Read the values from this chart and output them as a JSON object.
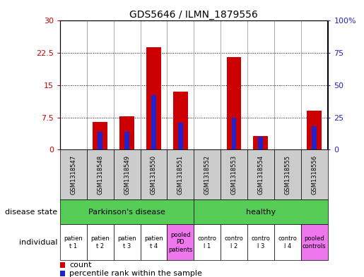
{
  "title": "GDS5646 / ILMN_1879556",
  "samples": [
    "GSM1318547",
    "GSM1318548",
    "GSM1318549",
    "GSM1318550",
    "GSM1318551",
    "GSM1318552",
    "GSM1318553",
    "GSM1318554",
    "GSM1318555",
    "GSM1318556"
  ],
  "count_values": [
    0,
    6.5,
    7.8,
    23.8,
    13.5,
    0,
    21.5,
    3.2,
    0,
    9.0
  ],
  "percentile_values": [
    0,
    14,
    14,
    42,
    21,
    0,
    25,
    10,
    0,
    18
  ],
  "ylim_left": [
    0,
    30
  ],
  "ylim_right": [
    0,
    100
  ],
  "yticks_left": [
    0,
    7.5,
    15,
    22.5,
    30
  ],
  "ytick_labels_left": [
    "0",
    "7.5",
    "15",
    "22.5",
    "30"
  ],
  "yticks_right": [
    0,
    25,
    50,
    75,
    100
  ],
  "ytick_labels_right": [
    "0",
    "25",
    "50",
    "75",
    "100%"
  ],
  "bar_color_red": "#cc0000",
  "bar_color_blue": "#2222cc",
  "bar_width": 0.55,
  "blue_bar_width": 0.18,
  "disease_state_labels": [
    "Parkinson's disease",
    "healthy"
  ],
  "disease_state_color_green": "#55cc55",
  "individual_color_white": "#ffffff",
  "individual_color_pink": "#ee77ee",
  "gsm_bg_color": "#cccccc",
  "row_label_disease": "disease state",
  "row_label_individual": "individual",
  "legend_count": "count",
  "legend_percentile": "percentile rank within the sample",
  "fig_bg": "#ffffff"
}
